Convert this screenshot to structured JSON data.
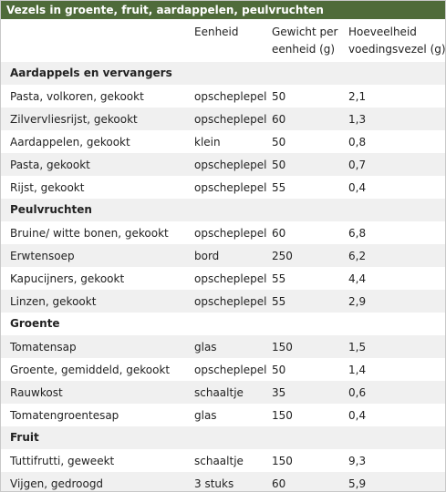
{
  "title": "Vezels in groente, fruit, aardappelen, peulvruchten",
  "header": [
    [],
    [
      "Eenheid"
    ],
    [
      "Gewicht per",
      "eenheid (g)"
    ],
    [
      "Hoeveelheid",
      "voedingsvezel (g)"
    ]
  ],
  "sections": [
    {
      "name": "Aardappels en vervangers",
      "rows": [
        [
          "Pasta, volkoren, gekookt",
          "opscheplepel",
          "50",
          "2,1"
        ],
        [
          "Zilvervliesrijst, gekookt",
          "opscheplepel",
          "60",
          "1,3"
        ],
        [
          "Aardappelen, gekookt",
          "klein",
          "50",
          "0,8"
        ],
        [
          "Pasta, gekookt",
          "opscheplepel",
          "50",
          "0,7"
        ],
        [
          "Rijst, gekookt",
          "opscheplepel",
          "55",
          "0,4"
        ]
      ]
    },
    {
      "name": "Peulvruchten",
      "rows": [
        [
          "Bruine/ witte bonen, gekookt",
          "opscheplepel",
          "60",
          "6,8"
        ],
        [
          "Erwtensoep",
          "bord",
          "250",
          "6,2"
        ],
        [
          "Kapucijners, gekookt",
          "opscheplepel",
          "55",
          "4,4"
        ],
        [
          "Linzen, gekookt",
          "opscheplepel",
          "55",
          "2,9"
        ]
      ]
    },
    {
      "name": "Groente",
      "rows": [
        [
          "Tomatensap",
          "glas",
          "150",
          "1,5"
        ],
        [
          "Groente, gemiddeld, gekookt",
          "opscheplepel",
          "50",
          "1,4"
        ],
        [
          "Rauwkost",
          "schaaltje",
          "35",
          "0,6"
        ],
        [
          "Tomatengroentesap",
          "glas",
          "150",
          "0,4"
        ]
      ]
    },
    {
      "name": "Fruit",
      "rows": [
        [
          "Tuttifrutti, geweekt",
          "schaaltje",
          "150",
          "9,3"
        ],
        [
          "Vijgen, gedroogd",
          "3 stuks",
          "60",
          "5,9"
        ]
      ]
    }
  ]
}
